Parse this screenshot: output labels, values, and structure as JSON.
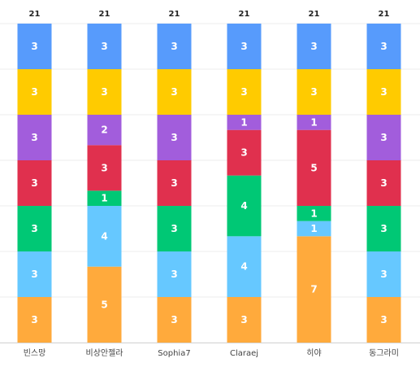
{
  "chart_data": {
    "type": "bar",
    "stacked": true,
    "categories": [
      "빈스망",
      "비상안젤라",
      "Sophia7",
      "Claraej",
      "히야",
      "동그라미"
    ],
    "totals": [
      21,
      21,
      21,
      21,
      21,
      21
    ],
    "ylim": [
      0,
      21
    ],
    "grid": true,
    "legend": "none",
    "series": [
      {
        "color": "#ffaa3c",
        "values": [
          3,
          5,
          3,
          3,
          7,
          3
        ]
      },
      {
        "color": "#66c8ff",
        "values": [
          3,
          4,
          3,
          4,
          1,
          3
        ]
      },
      {
        "color": "#00c875",
        "values": [
          3,
          1,
          3,
          4,
          1,
          3
        ]
      },
      {
        "color": "#e0304e",
        "values": [
          3,
          3,
          3,
          3,
          5,
          3
        ]
      },
      {
        "color": "#a25ddc",
        "values": [
          3,
          2,
          3,
          1,
          1,
          3
        ]
      },
      {
        "color": "#ffcb00",
        "values": [
          3,
          3,
          3,
          3,
          3,
          3
        ]
      },
      {
        "color": "#579bfc",
        "values": [
          3,
          3,
          3,
          3,
          3,
          3
        ]
      }
    ]
  }
}
